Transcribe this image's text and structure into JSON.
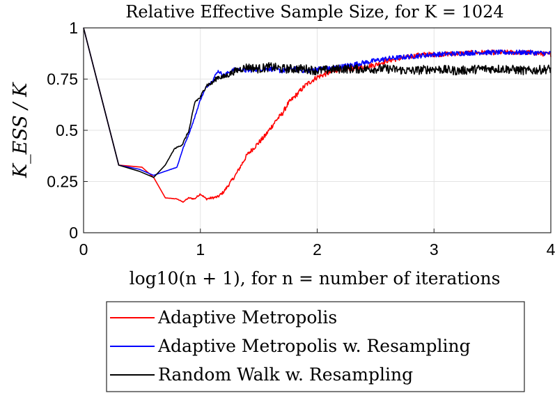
{
  "chart_data": {
    "type": "line",
    "title": "Relative Effective Sample Size, for K = 1024",
    "xlabel": "log10(n + 1), for n = number of iterations",
    "ylabel": "K_ESS / K",
    "xlim": [
      0,
      4
    ],
    "ylim": [
      0,
      1
    ],
    "xticks": [
      "0",
      "1",
      "2",
      "3",
      "4"
    ],
    "yticks": [
      "0",
      "0.25",
      "0.5",
      "0.75",
      "1"
    ],
    "grid": true,
    "legend_position": "bottom-outside",
    "series": [
      {
        "name": "Adaptive Metropolis",
        "color": "#ff0000",
        "x": [
          0,
          0.301,
          0.5,
          0.6,
          0.7,
          0.8,
          0.85,
          0.9,
          0.95,
          1.0,
          1.05,
          1.1,
          1.15,
          1.2,
          1.25,
          1.3,
          1.35,
          1.4,
          1.45,
          1.5,
          1.55,
          1.6,
          1.65,
          1.7,
          1.75,
          1.8,
          1.85,
          1.9,
          1.95,
          2.0,
          2.05,
          2.1,
          2.15,
          2.2,
          2.3,
          2.4,
          2.5,
          2.6,
          2.7,
          2.8,
          2.9,
          3.0,
          3.2,
          3.4,
          3.6,
          3.8,
          4.0
        ],
        "y": [
          1,
          0.33,
          0.32,
          0.27,
          0.17,
          0.165,
          0.15,
          0.17,
          0.165,
          0.19,
          0.165,
          0.17,
          0.175,
          0.2,
          0.24,
          0.28,
          0.33,
          0.38,
          0.41,
          0.44,
          0.47,
          0.51,
          0.55,
          0.58,
          0.63,
          0.66,
          0.69,
          0.72,
          0.74,
          0.76,
          0.77,
          0.78,
          0.79,
          0.8,
          0.8,
          0.81,
          0.82,
          0.84,
          0.85,
          0.86,
          0.87,
          0.87,
          0.875,
          0.88,
          0.88,
          0.88,
          0.87
        ],
        "noise": 0.012
      },
      {
        "name": "Adaptive Metropolis w. Resampling",
        "color": "#0000ff",
        "x": [
          0,
          0.301,
          0.477,
          0.6,
          0.699,
          0.8,
          0.85,
          0.9,
          0.95,
          1.0,
          1.05,
          1.1,
          1.15,
          1.2,
          1.3,
          1.4,
          1.5,
          1.6,
          1.7,
          1.8,
          1.9,
          2.0,
          2.1,
          2.2,
          2.3,
          2.4,
          2.5,
          2.6,
          2.8,
          3.0,
          3.2,
          3.4,
          3.6,
          3.8,
          4.0
        ],
        "y": [
          1,
          0.33,
          0.31,
          0.28,
          0.3,
          0.32,
          0.41,
          0.48,
          0.56,
          0.65,
          0.71,
          0.74,
          0.79,
          0.77,
          0.8,
          0.79,
          0.8,
          0.8,
          0.79,
          0.8,
          0.79,
          0.8,
          0.8,
          0.81,
          0.82,
          0.83,
          0.84,
          0.85,
          0.86,
          0.87,
          0.875,
          0.88,
          0.88,
          0.88,
          0.875
        ],
        "noise": 0.012
      },
      {
        "name": "Random Walk w. Resampling",
        "color": "#000000",
        "x": [
          0,
          0.301,
          0.477,
          0.6,
          0.699,
          0.778,
          0.845,
          0.903,
          0.954,
          1.0,
          1.05,
          1.1,
          1.15,
          1.2,
          1.3,
          1.4,
          1.5,
          1.6,
          1.7,
          1.8,
          1.9,
          2.0,
          2.2,
          2.4,
          2.6,
          2.8,
          3.0,
          3.2,
          3.4,
          3.6,
          3.8,
          4.0
        ],
        "y": [
          1,
          0.33,
          0.3,
          0.27,
          0.33,
          0.41,
          0.43,
          0.5,
          0.64,
          0.66,
          0.72,
          0.73,
          0.76,
          0.76,
          0.79,
          0.81,
          0.8,
          0.81,
          0.8,
          0.8,
          0.8,
          0.79,
          0.8,
          0.8,
          0.8,
          0.79,
          0.8,
          0.79,
          0.8,
          0.8,
          0.79,
          0.8
        ],
        "noise": 0.022
      }
    ]
  }
}
